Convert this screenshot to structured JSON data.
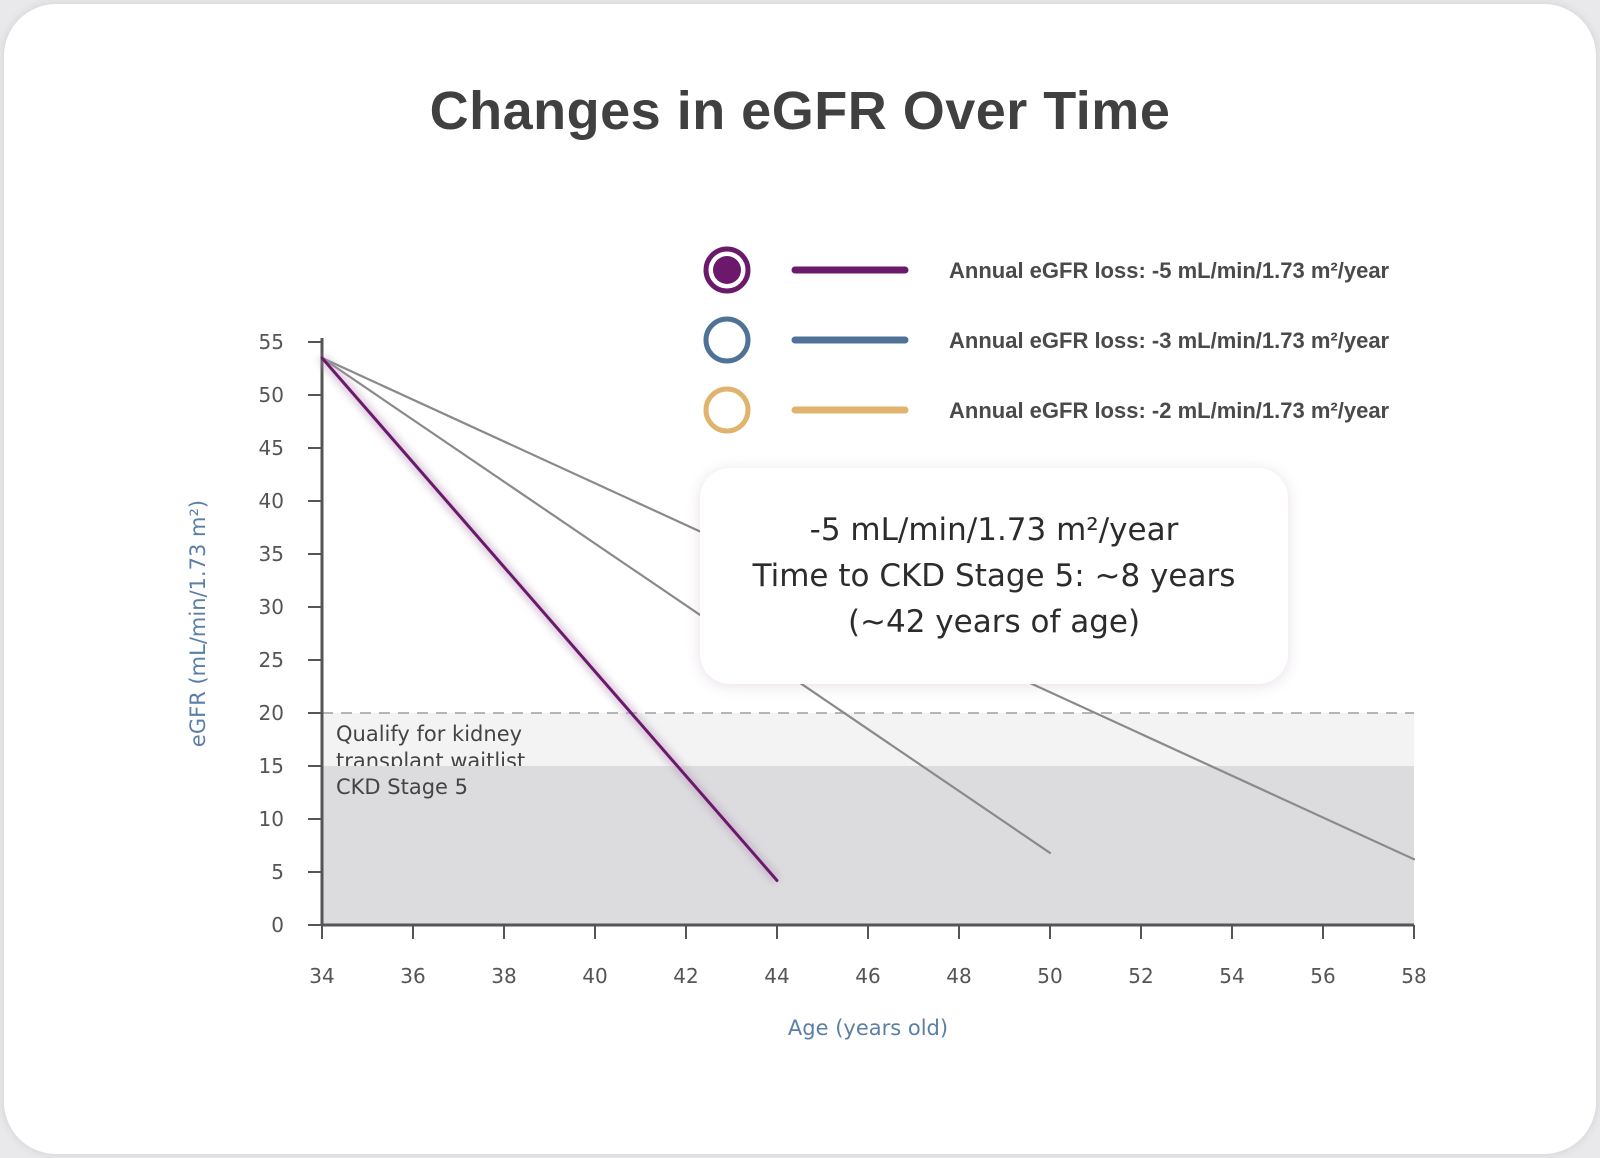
{
  "title": "Changes in eGFR Over Time",
  "callout": {
    "line1": "-5 mL/min/1.73 m²/year",
    "line2": "Time to CKD Stage 5: ~8 years",
    "line3": "(~42 years of age)"
  },
  "chart_data": {
    "type": "line",
    "xlabel": "Age (years old)",
    "ylabel": "eGFR (mL/min/1.73 m²)",
    "xlim": [
      34,
      58
    ],
    "ylim": [
      0,
      55
    ],
    "x_ticks": [
      34,
      36,
      38,
      40,
      42,
      44,
      46,
      48,
      50,
      52,
      54,
      56,
      58
    ],
    "y_ticks": [
      0,
      5,
      10,
      15,
      20,
      25,
      30,
      35,
      40,
      45,
      50,
      55
    ],
    "grid": false,
    "legend_position": "top-right",
    "series": [
      {
        "name": "Annual eGFR loss: -5 mL/min/1.73 m²/year",
        "color": "#6b1a6b",
        "marker": "filled-circle",
        "points": [
          [
            34,
            53.5
          ],
          [
            44,
            4.2
          ]
        ]
      },
      {
        "name": "Annual eGFR loss: -3 mL/min/1.73 m²/year",
        "color": "#4f7396",
        "marker": "hollow-circle",
        "points": [
          [
            34,
            53.5
          ],
          [
            50,
            6.8
          ]
        ]
      },
      {
        "name": "Annual eGFR loss: -2 mL/min/1.73 m²/year",
        "color": "#e0b46e",
        "marker": "hollow-circle",
        "points": [
          [
            34,
            53.5
          ],
          [
            58,
            6.2
          ]
        ]
      }
    ],
    "zones": [
      {
        "label": "Qualify for kidney transplant waitlist",
        "label_lines": [
          "Qualify for kidney",
          "transplant waitlist"
        ],
        "y_from": 15,
        "y_to": 20,
        "color": "#f3f3f4"
      },
      {
        "label": "CKD Stage 5",
        "label_lines": [
          "CKD Stage 5"
        ],
        "y_from": 0,
        "y_to": 15,
        "color": "#dcdcdf"
      }
    ],
    "plot_line_colors": [
      "#6b1a6b",
      "#8a8a8a",
      "#8a8a8a"
    ]
  }
}
